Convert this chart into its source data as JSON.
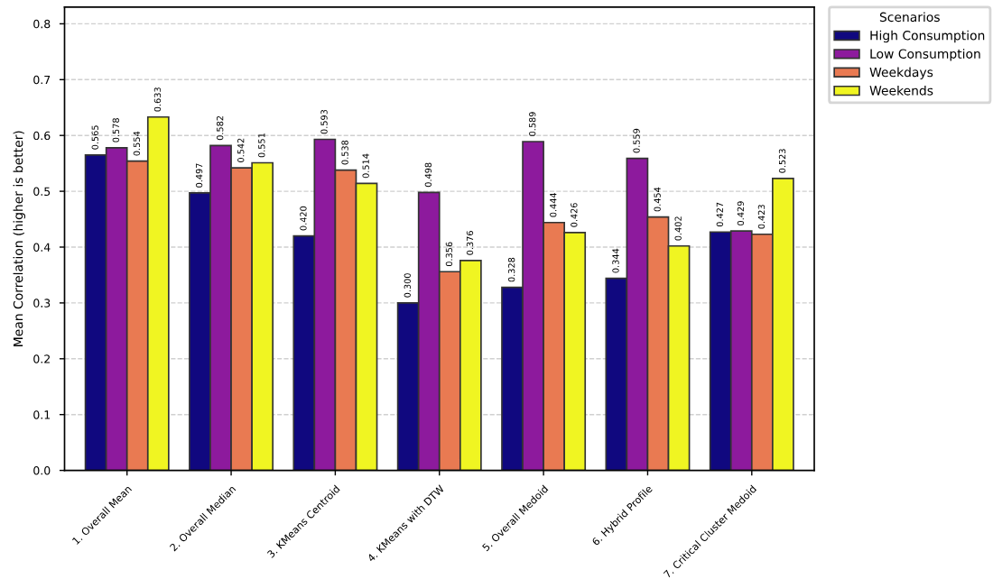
{
  "chart_data": {
    "type": "bar",
    "ylabel": "Mean Correlation (higher is better)",
    "categories": [
      "1. Overall Mean",
      "2. Overall Median",
      "3. KMeans Centroid",
      "4. KMeans with DTW",
      "5. Overall Medoid",
      "6. Hybrid Profile",
      "7. Critical Cluster Medoid"
    ],
    "series": [
      {
        "name": "High Consumption",
        "color": "#10087f",
        "values": [
          0.565,
          0.497,
          0.42,
          0.3,
          0.328,
          0.344,
          0.427
        ],
        "value_labels": [
          "0.565",
          "0.497",
          "0.420",
          "0.300",
          "0.328",
          "0.344",
          "0.427"
        ]
      },
      {
        "name": "Low Consumption",
        "color": "#8d1a9d",
        "values": [
          0.578,
          0.582,
          0.593,
          0.498,
          0.589,
          0.559,
          0.429
        ],
        "value_labels": [
          "0.578",
          "0.582",
          "0.593",
          "0.498",
          "0.589",
          "0.559",
          "0.429"
        ]
      },
      {
        "name": "Weekdays",
        "color": "#e97a52",
        "values": [
          0.554,
          0.542,
          0.538,
          0.356,
          0.444,
          0.454,
          0.423
        ],
        "value_labels": [
          "0.554",
          "0.542",
          "0.538",
          "0.356",
          "0.444",
          "0.454",
          "0.423"
        ]
      },
      {
        "name": "Weekends",
        "color": "#f0f522",
        "values": [
          0.633,
          0.551,
          0.514,
          0.376,
          0.426,
          0.402,
          0.523
        ],
        "value_labels": [
          "0.633",
          "0.551",
          "0.514",
          "0.376",
          "0.426",
          "0.402",
          "0.523"
        ]
      }
    ],
    "legend_title": "Scenarios",
    "legend": "top right",
    "ylim": [
      0,
      0.83
    ],
    "yticks": [
      {
        "value": 0,
        "label": "0.0"
      },
      0.1,
      0.2,
      0.3,
      0.4,
      0.5,
      0.6,
      0.7,
      0.8
    ],
    "grid": "y"
  }
}
